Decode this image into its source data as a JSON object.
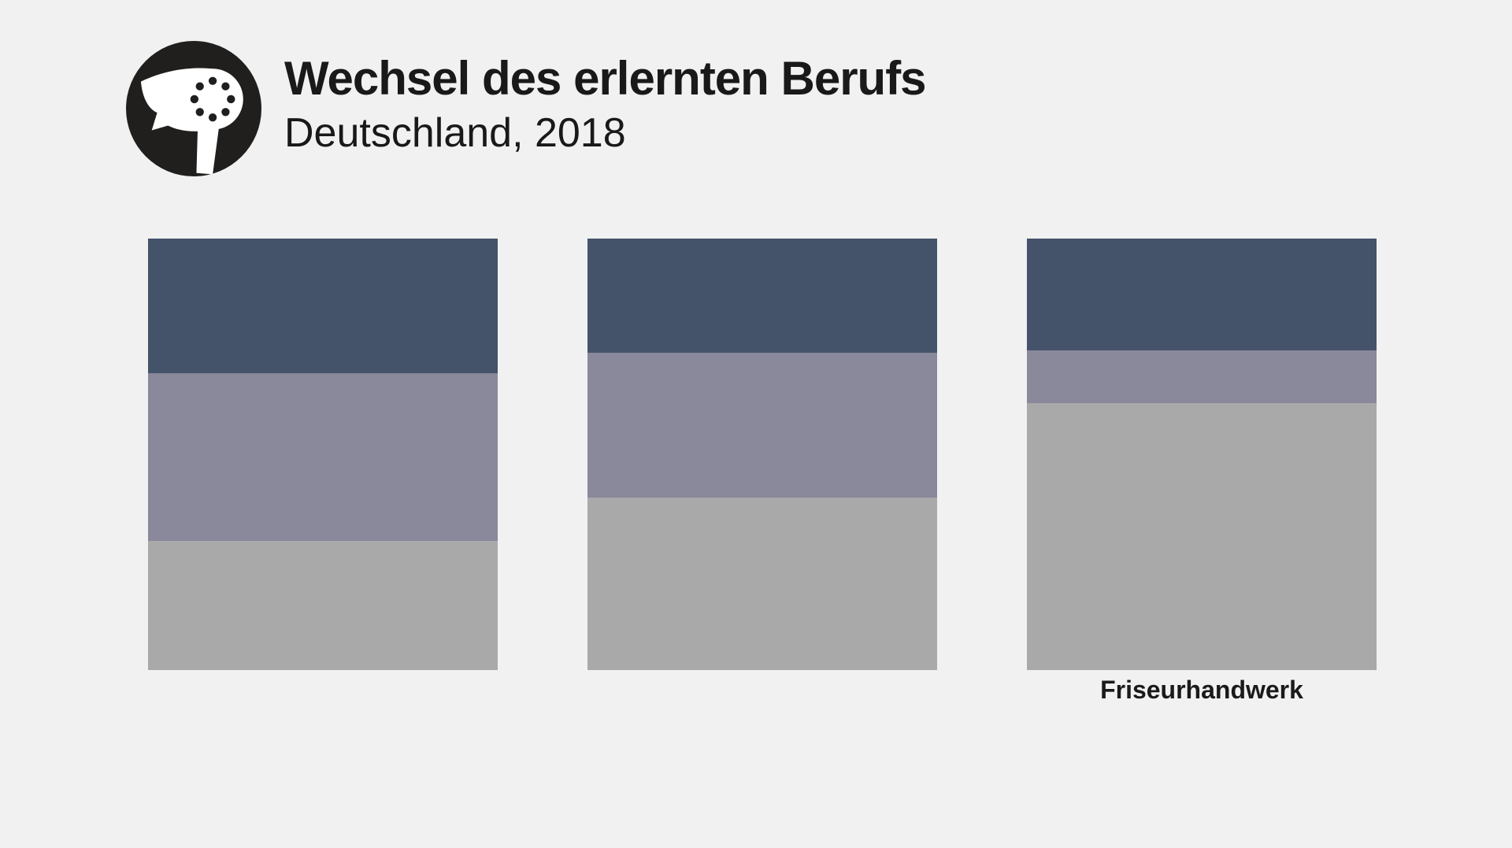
{
  "logo": {
    "icon": "hairdryer-icon",
    "circle_color": "#201f1d",
    "glyph_color": "#ffffff"
  },
  "colors": {
    "background": "#f1f1f2",
    "text": "#191919"
  },
  "chart_data": {
    "type": "bar",
    "subtype": "stacked-vertical-columns",
    "title": "Wechsel des erlernten Berufs",
    "subtitle": "Deutschland, 2018",
    "categories": [
      "",
      "",
      "Friseurhandwerk"
    ],
    "series": [
      {
        "name": "segment-top-dark-blue",
        "color": "#44536a",
        "values": [
          31.2,
          26.5,
          25.9
        ]
      },
      {
        "name": "segment-middle-purple-gray",
        "color": "#8a889b",
        "values": [
          38.9,
          33.6,
          12.2
        ]
      },
      {
        "name": "segment-bottom-light-gray",
        "color": "#a9a9a9",
        "values": [
          29.9,
          40.0,
          61.9
        ]
      }
    ],
    "ylim": [
      0,
      100
    ],
    "values_unit": "percent of column height, estimated from pixels (no numeric labels shown)",
    "grid": false,
    "legend": false,
    "axes_labels_shown": false
  }
}
